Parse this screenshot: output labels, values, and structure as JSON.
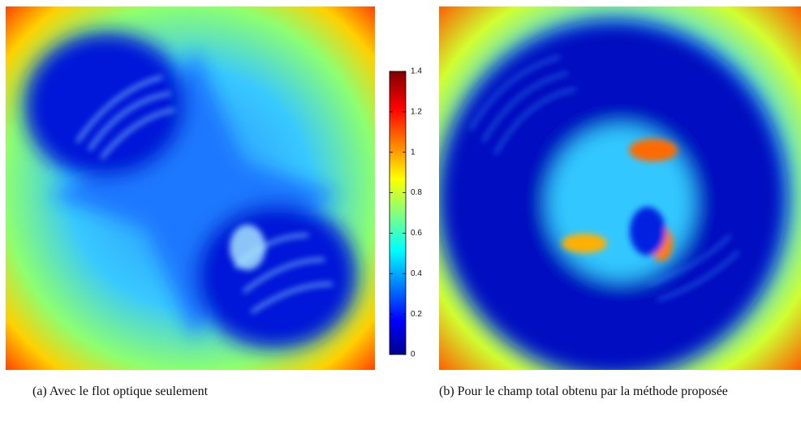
{
  "figure": {
    "colorbar": {
      "lim": [
        0,
        1.4
      ],
      "ticks": [
        0,
        0.2,
        0.4,
        0.6,
        0.8,
        1,
        1.2,
        1.4
      ]
    },
    "panels": [
      {
        "caption": "(a) Avec le flot optique seulement"
      },
      {
        "caption": "(b) Pour le champ total obtenu par la méthode proposée"
      }
    ]
  }
}
